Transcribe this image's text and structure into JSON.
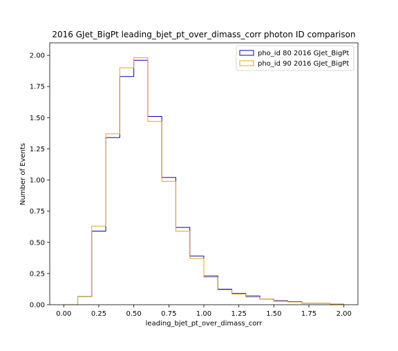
{
  "chart_data": {
    "type": "line",
    "title": "2016 GJet_BigPt leading_bjet_pt_over_dimass_corr photon ID comparison",
    "xlabel": "leading_bjet_pt_over_dimass_corr",
    "ylabel": "Number of Events",
    "xlim": [
      -0.1,
      2.1
    ],
    "ylim": [
      0,
      2.1
    ],
    "xticks": [
      "0.00",
      "0.25",
      "0.50",
      "0.75",
      "1.00",
      "1.25",
      "1.50",
      "1.75",
      "2.00"
    ],
    "yticks": [
      "0.00",
      "0.25",
      "0.50",
      "0.75",
      "1.00",
      "1.25",
      "1.50",
      "1.75",
      "2.00"
    ],
    "bin_edges": [
      0.0,
      0.1,
      0.2,
      0.3,
      0.4,
      0.5,
      0.6,
      0.7,
      0.8,
      0.9,
      1.0,
      1.1,
      1.2,
      1.3,
      1.4,
      1.5,
      1.6,
      1.7,
      1.8,
      1.9,
      2.0
    ],
    "series": [
      {
        "name": "pho_id 80 2016 GJet_BigPt",
        "color": "#0000b3",
        "values": [
          0.0,
          0.065,
          0.59,
          1.34,
          1.83,
          1.96,
          1.51,
          1.02,
          0.62,
          0.39,
          0.23,
          0.125,
          0.09,
          0.07,
          0.045,
          0.032,
          0.025,
          0.012,
          0.012,
          0.004
        ]
      },
      {
        "name": "pho_id 90 2016 GJet_BigPt",
        "color": "#e6a317",
        "values": [
          0.0,
          0.065,
          0.63,
          1.37,
          1.9,
          1.98,
          1.47,
          0.99,
          0.59,
          0.37,
          0.22,
          0.12,
          0.085,
          0.06,
          0.045,
          0.028,
          0.022,
          0.012,
          0.012,
          0.003
        ]
      }
    ],
    "legend_position": "top-right",
    "grid": false
  }
}
